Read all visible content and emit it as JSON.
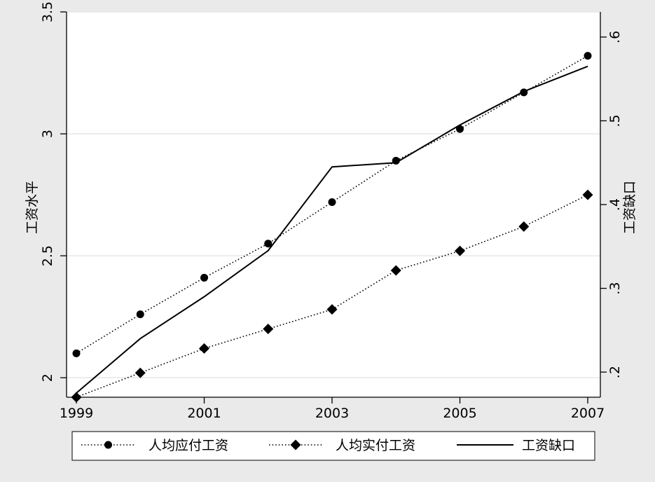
{
  "chart_data": {
    "type": "line",
    "x": [
      1999,
      2000,
      2001,
      2002,
      2003,
      2004,
      2005,
      2006,
      2007
    ],
    "x_ticks": [
      "1999",
      "2001",
      "2003",
      "2005",
      "2007"
    ],
    "xlim": [
      1999,
      2007
    ],
    "ylabel": "工资水平",
    "ylim": [
      1.92,
      3.5
    ],
    "y_ticks": [
      "2",
      "2.5",
      "3",
      "3.5"
    ],
    "y2label": "工资缺口",
    "y2lim": [
      0.17,
      0.63
    ],
    "y2_ticks": [
      ".2",
      ".3",
      ".4",
      ".5",
      ".6"
    ],
    "grid": true,
    "legend_position": "bottom",
    "series": [
      {
        "name": "人均应付工资",
        "axis": "left",
        "marker": "circle",
        "style": "dotted",
        "values": [
          2.1,
          2.26,
          2.41,
          2.55,
          2.72,
          2.89,
          3.02,
          3.17,
          3.32
        ]
      },
      {
        "name": "人均实付工资",
        "axis": "left",
        "marker": "diamond",
        "style": "dotted",
        "values": [
          1.92,
          2.02,
          2.12,
          2.2,
          2.28,
          2.44,
          2.52,
          2.62,
          2.75
        ]
      },
      {
        "name": "工资缺口",
        "axis": "right",
        "marker": "none",
        "style": "solid",
        "values": [
          0.175,
          0.24,
          0.29,
          0.345,
          0.445,
          0.45,
          0.495,
          0.535,
          0.565
        ]
      }
    ]
  }
}
